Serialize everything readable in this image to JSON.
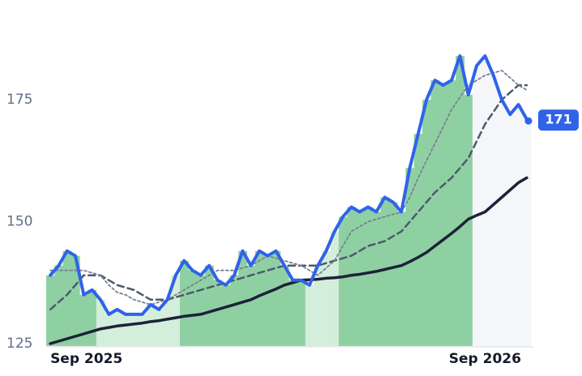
{
  "chart_data": {
    "type": "line",
    "x": [
      0,
      1,
      2,
      3,
      4,
      5,
      6,
      7,
      8,
      9,
      10,
      11,
      12,
      13,
      14,
      15,
      16,
      17,
      18,
      19,
      20,
      21,
      22,
      23,
      24,
      25,
      26,
      27,
      28,
      29,
      30,
      31,
      32,
      33,
      34,
      35,
      36,
      37,
      38,
      39,
      40,
      41,
      42,
      43,
      44,
      45,
      46,
      47,
      48,
      49,
      50,
      51,
      52,
      53,
      54,
      55,
      56,
      57
    ],
    "xlim": [
      -0.2,
      57.2
    ],
    "xticks": [
      {
        "value": 0,
        "label": "Sep 2025"
      },
      {
        "value": 52,
        "label": "Sep 2026"
      }
    ],
    "ylim": [
      124.5,
      193.8
    ],
    "yticks": [
      125,
      150,
      175
    ],
    "area_colors": [
      "#8fd0a3",
      "#8fd0a3",
      "#8fd0a3",
      "#8fd0a3",
      "#8fd0a3",
      "#8fd0a3",
      "#d3eedb",
      "#d3eedb",
      "#d3eedb",
      "#d3eedb",
      "#d3eedb",
      "#d3eedb",
      "#d3eedb",
      "#d3eedb",
      "#d3eedb",
      "#d3eedb",
      "#8fd0a3",
      "#8fd0a3",
      "#8fd0a3",
      "#8fd0a3",
      "#8fd0a3",
      "#8fd0a3",
      "#8fd0a3",
      "#8fd0a3",
      "#8fd0a3",
      "#8fd0a3",
      "#8fd0a3",
      "#8fd0a3",
      "#8fd0a3",
      "#8fd0a3",
      "#8fd0a3",
      "#d3eedb",
      "#d3eedb",
      "#d3eedb",
      "#d3eedb",
      "#8fd0a3",
      "#8fd0a3",
      "#8fd0a3",
      "#8fd0a3",
      "#8fd0a3",
      "#8fd0a3",
      "#8fd0a3",
      "#8fd0a3",
      "#8fd0a3",
      "#8fd0a3",
      "#8fd0a3",
      "#8fd0a3",
      "#8fd0a3",
      "#8fd0a3",
      "#8fd0a3",
      "#8fd0a3",
      "#f5f6fa",
      "#f5f6fa",
      "#f5f6fa",
      "#f5f6fa",
      "#f5f6fa",
      "#f5f6fa",
      "#f5f6fa"
    ],
    "series": [
      {
        "color": "#1c2238",
        "width": 3.5,
        "dash": "none",
        "values": [
          125,
          125.5,
          126,
          126.5,
          127,
          127.5,
          128,
          128.3,
          128.6,
          128.8,
          129,
          129.2,
          129.5,
          129.7,
          130,
          130.3,
          130.6,
          130.8,
          131,
          131.5,
          132,
          132.5,
          133,
          133.5,
          134,
          134.8,
          135.5,
          136.2,
          137,
          137.5,
          138,
          138.1,
          138.2,
          138.4,
          138.5,
          138.7,
          139,
          139.2,
          139.5,
          139.8,
          140.2,
          140.6,
          141,
          141.8,
          142.7,
          143.7,
          145,
          146.3,
          147.6,
          149,
          150.5,
          151.3,
          152,
          153.5,
          155,
          156.5,
          158,
          159
        ]
      },
      {
        "color": "#4c5a6e",
        "width": 2.5,
        "dash": "8 5",
        "values": [
          132,
          133.5,
          135,
          137,
          139,
          139,
          139,
          138,
          137,
          136.5,
          136,
          135,
          134,
          134,
          134,
          134.5,
          135,
          135.5,
          136,
          136.5,
          137,
          137.5,
          138,
          138.5,
          139,
          139.5,
          140,
          140.5,
          141,
          141,
          141,
          141,
          141,
          141.5,
          142,
          142.5,
          143,
          144,
          145,
          145.5,
          146,
          147,
          148,
          150,
          152,
          154,
          156,
          157.5,
          159,
          161,
          163,
          166.5,
          170,
          172.5,
          175,
          176.5,
          178,
          178
        ]
      },
      {
        "color": "#7a8090",
        "width": 1.8,
        "dash": "3 3",
        "values": [
          140,
          140,
          140,
          140,
          140,
          139.5,
          139,
          137,
          135.5,
          135,
          134,
          133.5,
          133,
          133.5,
          134,
          135,
          136,
          137,
          138,
          139,
          140,
          140,
          140,
          140.5,
          141,
          142,
          143,
          142.5,
          142,
          141.5,
          141,
          140,
          139,
          140.5,
          142,
          145,
          148,
          149,
          150,
          150.5,
          151,
          151.5,
          152,
          155,
          159,
          162.5,
          166,
          169.5,
          173,
          175.5,
          178,
          179,
          180,
          180.5,
          181,
          179.5,
          178,
          177
        ]
      },
      {
        "color": "#2f63e8",
        "width": 4,
        "dash": "none",
        "values": [
          139,
          141,
          144,
          143,
          135,
          136,
          134,
          131,
          132,
          131,
          131,
          131,
          133,
          132,
          134,
          139,
          142,
          140,
          139,
          141,
          138,
          137,
          139,
          144,
          141,
          144,
          143,
          144,
          141,
          138,
          138,
          137,
          141,
          144,
          148,
          151,
          153,
          152,
          153,
          152,
          155,
          154,
          152,
          161,
          168,
          175,
          179,
          178,
          179,
          184,
          176,
          182,
          184,
          180,
          175,
          172,
          174,
          171
        ]
      }
    ]
  }
}
